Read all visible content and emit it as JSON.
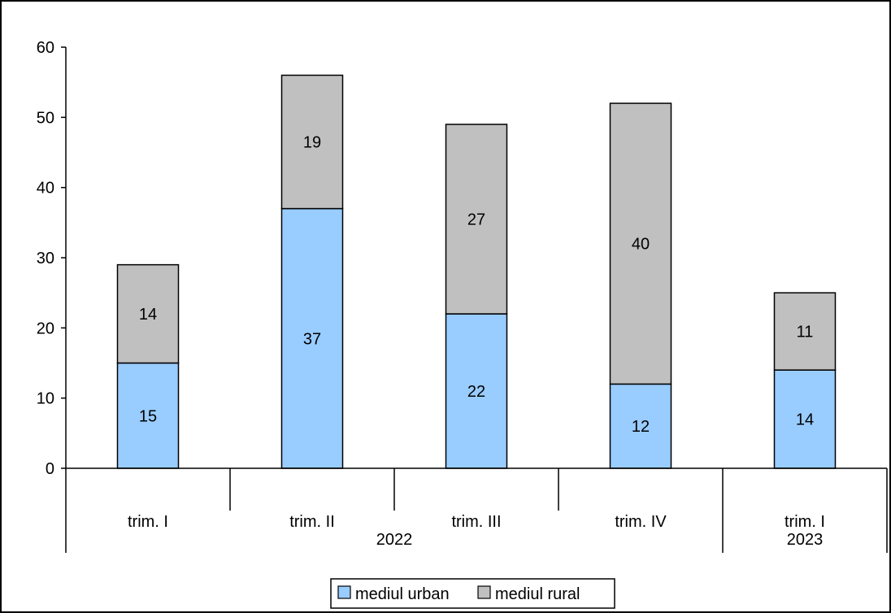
{
  "chart_data": {
    "type": "bar",
    "stacked": true,
    "categories": [
      "trim. I",
      "trim. II",
      "trim. III",
      "trim. IV",
      "trim. I"
    ],
    "groups": [
      {
        "label": "2022",
        "categories": [
          0,
          1,
          2,
          3
        ]
      },
      {
        "label": "2023",
        "categories": [
          4
        ]
      }
    ],
    "series": [
      {
        "name": "mediul urban",
        "color": "#99ccff",
        "values": [
          15,
          37,
          22,
          12,
          14
        ]
      },
      {
        "name": "mediul rural",
        "color": "#c0c0c0",
        "values": [
          14,
          19,
          27,
          40,
          11
        ]
      }
    ],
    "ylim": [
      0,
      60
    ],
    "yticks": [
      0,
      10,
      20,
      30,
      40,
      50,
      60
    ],
    "title": "",
    "xlabel": "",
    "ylabel": "",
    "grid": false,
    "legend_position": "bottom"
  }
}
